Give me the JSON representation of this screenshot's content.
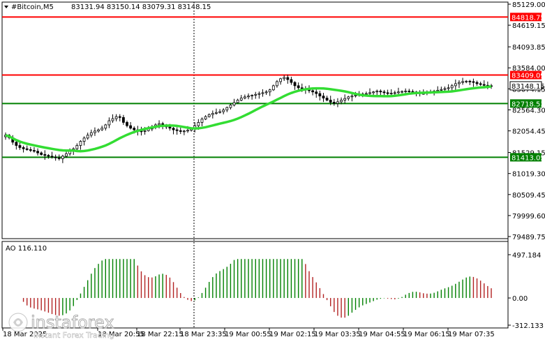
{
  "header": {
    "symbol": "#Bitcoin,M5",
    "ohlc": "83131.94 83150.14 83079.31 83148.15"
  },
  "indicator": {
    "label": "AO 116.110"
  },
  "watermark": {
    "brand": "instaforex",
    "tagline": "Instant Forex Trading"
  },
  "colors": {
    "level_line": "#008000",
    "resistance_line": "#ff0000",
    "ma_line": "#33dd33",
    "ao_up": "#008000",
    "ao_down": "#b22222",
    "price_tag_bg": "#ffffff"
  },
  "chart_data": [
    {
      "type": "candlestick",
      "ylim": [
        79489.75,
        85129.0
      ],
      "y_ticks": [
        "85129.00",
        "84619.15",
        "84093.85",
        "83584.00",
        "83074.15",
        "82564.30",
        "82054.45",
        "81529.15",
        "81019.30",
        "80509.45",
        "79999.60",
        "79489.75"
      ],
      "x_ticks": [
        "18 Mar 2025",
        "18 Mar 20:55",
        "18 Mar 22:15",
        "18 Mar 23:35",
        "19 Mar 00:55",
        "19 Mar 02:15",
        "19 Mar 03:35",
        "19 Mar 04:55",
        "19 Mar 06:15",
        "19 Mar 07:35"
      ],
      "current_price": "83148.15",
      "levels": [
        {
          "label": "84818.75",
          "value": 84818.75,
          "kind": "resistance"
        },
        {
          "label": "83409.09",
          "value": 83409.09,
          "kind": "resistance"
        },
        {
          "label": "82718.53",
          "value": 82718.53,
          "kind": "support"
        },
        {
          "label": "81413.05",
          "value": 81413.05,
          "kind": "support"
        }
      ],
      "series_close": [
        81950,
        81890,
        81780,
        81700,
        81650,
        81620,
        81600,
        81580,
        81560,
        81520,
        81480,
        81460,
        81440,
        81420,
        81400,
        81380,
        81440,
        81500,
        81560,
        81620,
        81700,
        81800,
        81880,
        81950,
        82010,
        82050,
        82080,
        82120,
        82200,
        82300,
        82350,
        82400,
        82380,
        82260,
        82180,
        82120,
        82080,
        82050,
        82040,
        82060,
        82100,
        82150,
        82200,
        82230,
        82200,
        82150,
        82120,
        82080,
        82060,
        82040,
        82050,
        82070,
        82100,
        82180,
        82260,
        82340,
        82400,
        82450,
        82480,
        82500,
        82520,
        82560,
        82620,
        82680,
        82740,
        82800,
        82850,
        82880,
        82900,
        82920,
        82940,
        82960,
        82980,
        83000,
        83050,
        83150,
        83250,
        83320,
        83350,
        83300,
        83230,
        83150,
        83100,
        83080,
        83060,
        83030,
        83000,
        82960,
        82900,
        82850,
        82800,
        82750,
        82720,
        82760,
        82800,
        82840,
        82880,
        82900,
        82920,
        82940,
        82950,
        82960,
        82980,
        83000,
        83020,
        83000,
        82980,
        82960,
        82970,
        82980,
        83000,
        83010,
        83020,
        83010,
        83000,
        82980,
        82960,
        82960,
        82980,
        83000,
        83020,
        83040,
        83060,
        83080,
        83100,
        83150,
        83200,
        83230,
        83250,
        83260,
        83250,
        83230,
        83200,
        83180,
        83160,
        83150,
        83148
      ]
    },
    {
      "type": "bar",
      "name": "AO",
      "ylim": [
        -312.133,
        497.184
      ],
      "y_ticks": [
        "497.184",
        "0.00",
        "-312.133"
      ],
      "current_value": "116.110"
    }
  ]
}
